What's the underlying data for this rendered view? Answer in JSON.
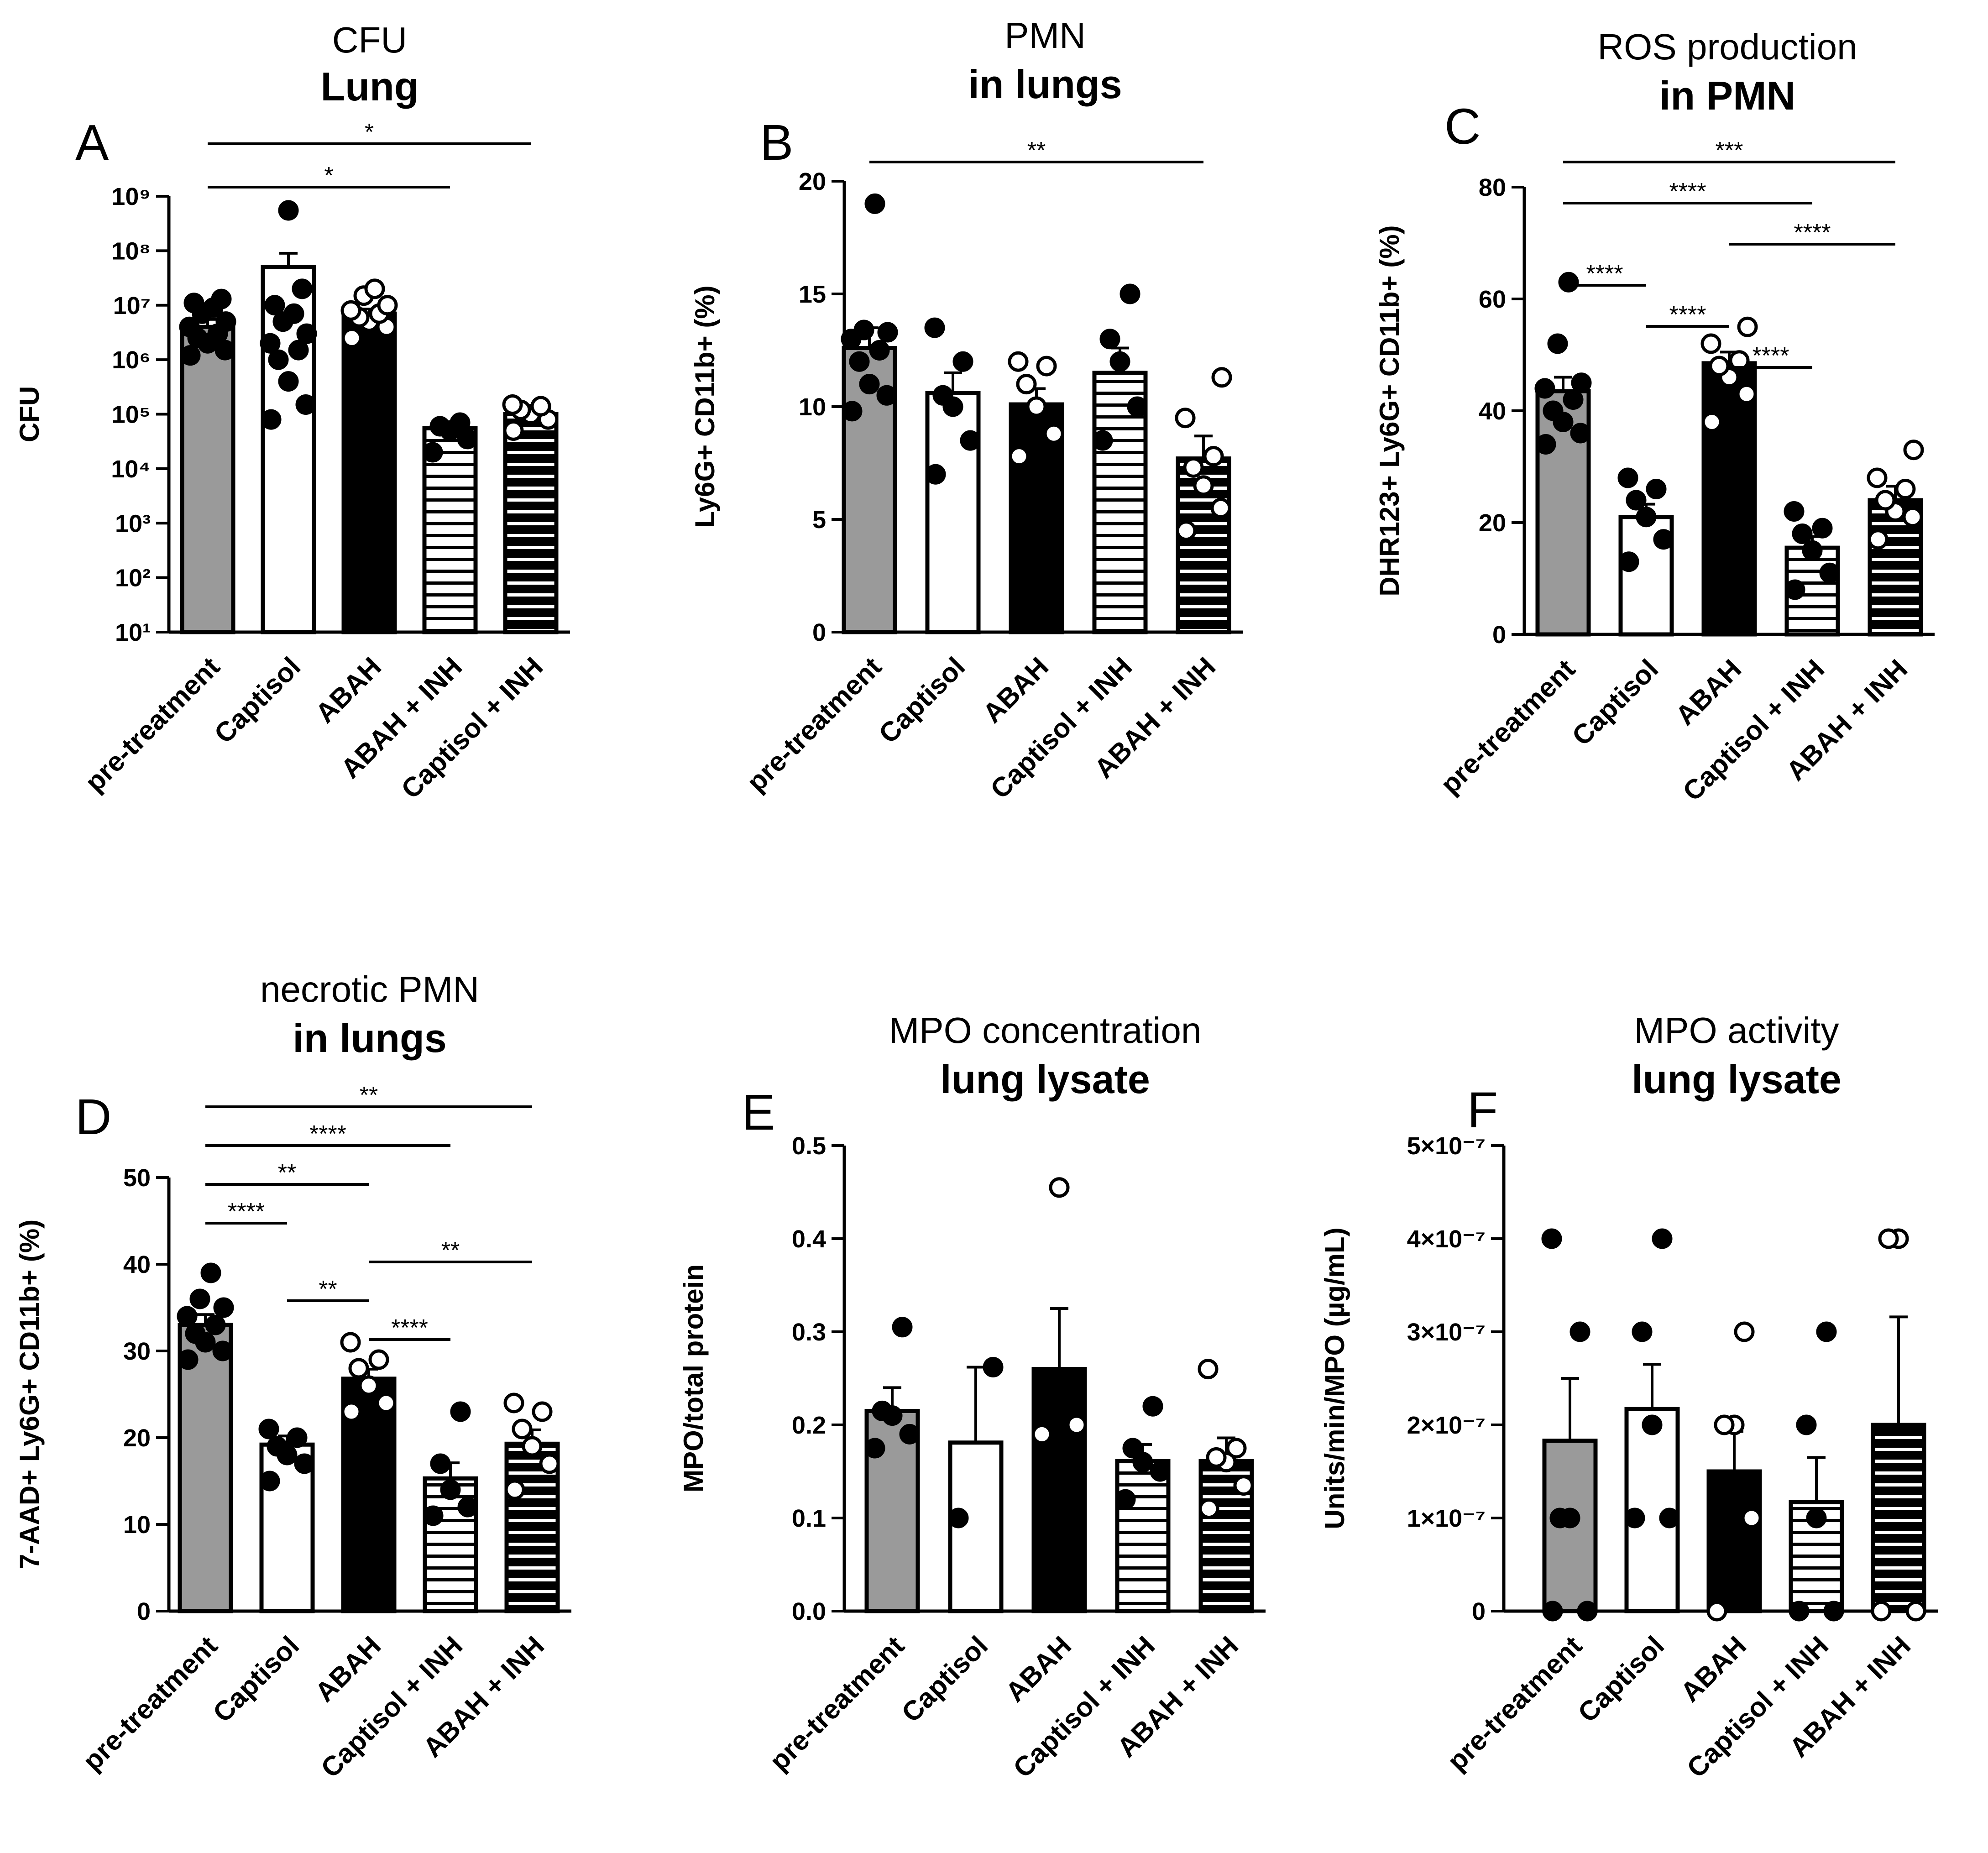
{
  "chart_data": [
    {
      "id": "A",
      "letter": "A",
      "type": "bar",
      "title": "CFU",
      "subtitle": "Lung",
      "ylabel": "CFU",
      "yscale": "log10",
      "ylim": [
        10,
        1000000000
      ],
      "ytick_labels": [
        "10¹",
        "10²",
        "10³",
        "10⁴",
        "10⁵",
        "10⁶",
        "10⁷",
        "10⁸",
        "10⁹"
      ],
      "categories": [
        "pre-treatment",
        "Captisol",
        "ABAH",
        "ABAH + INH",
        "Captisol + INH"
      ],
      "bar_styles": [
        "gray",
        "white",
        "black",
        "white-stripes",
        "black-stripes"
      ],
      "values": [
        4000000,
        50000000,
        7000000,
        55000,
        100000
      ],
      "errors": [
        1500000,
        40000000,
        1500000,
        12000,
        15000
      ],
      "points": [
        [
          1200000,
          1500000,
          2000000,
          2500000,
          3000000,
          4000000,
          5000000,
          7000000,
          9000000,
          11000000,
          13000000
        ],
        [
          80000,
          150000,
          400000,
          1000000,
          1500000,
          2000000,
          3000000,
          5000000,
          7000000,
          10000000,
          20000000,
          550000000
        ],
        [
          2500000,
          4000000,
          5000000,
          6000000,
          7000000,
          8000000,
          10000000,
          15000000,
          20000000
        ],
        [
          20000,
          35000,
          50000,
          60000,
          70000
        ],
        [
          50000,
          80000,
          100000,
          120000,
          140000,
          150000
        ]
      ],
      "point_styles": [
        "filled",
        "filled",
        "open",
        "filled",
        "open"
      ],
      "significance": [
        {
          "from": 0,
          "to": 4,
          "label": "*"
        },
        {
          "from": 0,
          "to": 3,
          "label": "*"
        }
      ]
    },
    {
      "id": "B",
      "letter": "B",
      "type": "bar",
      "title": "PMN",
      "subtitle": "in lungs",
      "ylabel": "Ly6G+ CD11b+ (%)",
      "yscale": "linear",
      "ylim": [
        0,
        20
      ],
      "yticks": [
        0,
        5,
        10,
        15,
        20
      ],
      "categories": [
        "pre-treatment",
        "Captisol",
        "ABAH",
        "Captisol + INH",
        "ABAH + INH"
      ],
      "bar_styles": [
        "gray",
        "white",
        "black",
        "white-stripes",
        "black-stripes"
      ],
      "values": [
        12.6,
        10.6,
        10.1,
        11.5,
        7.7
      ],
      "errors": [
        0.9,
        0.9,
        0.7,
        1.1,
        1.0
      ],
      "points": [
        [
          9.8,
          10.5,
          11.0,
          12.0,
          12.5,
          13.0,
          13.3,
          13.4,
          19.0
        ],
        [
          7.0,
          8.5,
          10.0,
          10.5,
          12.0,
          13.5
        ],
        [
          7.8,
          8.8,
          10.0,
          11.0,
          11.8,
          12.0
        ],
        [
          8.5,
          10.0,
          12.0,
          13.0,
          15.0
        ],
        [
          4.5,
          5.5,
          6.5,
          7.3,
          7.8,
          9.5,
          11.3
        ]
      ],
      "point_styles": [
        "filled",
        "filled",
        "open",
        "filled",
        "open"
      ],
      "significance": [
        {
          "from": 0,
          "to": 4,
          "label": "**"
        }
      ]
    },
    {
      "id": "C",
      "letter": "C",
      "type": "bar",
      "title": "ROS production",
      "subtitle": "in  PMN",
      "ylabel": "DHR123+ Ly6G+ CD11b+ (%)",
      "yscale": "linear",
      "ylim": [
        0,
        80
      ],
      "yticks": [
        0,
        20,
        40,
        60,
        80
      ],
      "categories": [
        "pre-treatment",
        "Captisol",
        "ABAH",
        "Captisol + INH",
        "ABAH + INH"
      ],
      "bar_styles": [
        "gray",
        "white",
        "black",
        "white-stripes",
        "black-stripes"
      ],
      "values": [
        43.5,
        21.0,
        48.5,
        15.5,
        24.0
      ],
      "errors": [
        2.5,
        2.3,
        2.0,
        2.0,
        2.5
      ],
      "points": [
        [
          34,
          36,
          38,
          40,
          42,
          44,
          45,
          52,
          63
        ],
        [
          13,
          17,
          21,
          24,
          26,
          28
        ],
        [
          38,
          43,
          46,
          48,
          49,
          52,
          55
        ],
        [
          8,
          11,
          15,
          18,
          19,
          22
        ],
        [
          17,
          21,
          22,
          24,
          26,
          28,
          33
        ]
      ],
      "point_styles": [
        "filled",
        "filled",
        "open",
        "filled",
        "open"
      ],
      "significance": [
        {
          "from": 0,
          "to": 4,
          "label": "***"
        },
        {
          "from": 0,
          "to": 3,
          "label": "****"
        },
        {
          "from": 2,
          "to": 4,
          "label": "****"
        },
        {
          "from": 0,
          "to": 1,
          "label": "****"
        },
        {
          "from": 1,
          "to": 2,
          "label": "****"
        },
        {
          "from": 2,
          "to": 3,
          "label": "****"
        }
      ]
    },
    {
      "id": "D",
      "letter": "D",
      "type": "bar",
      "title": "necrotic PMN",
      "subtitle": "in lungs",
      "ylabel": "7-AAD+ Ly6G+ CD11b+ (%)",
      "yscale": "linear",
      "ylim": [
        0,
        50
      ],
      "yticks": [
        0,
        10,
        20,
        30,
        40,
        50
      ],
      "categories": [
        "pre-treatment",
        "Captisol",
        "ABAH",
        "Captisol + INH",
        "ABAH + INH"
      ],
      "bar_styles": [
        "gray",
        "white",
        "black",
        "white-stripes",
        "black-stripes"
      ],
      "values": [
        33.0,
        19.2,
        26.8,
        15.3,
        19.3
      ],
      "errors": [
        1.2,
        1.0,
        1.1,
        1.8,
        1.6
      ],
      "points": [
        [
          29,
          30,
          31,
          32,
          33,
          34,
          35,
          36,
          39
        ],
        [
          15,
          17,
          18,
          19,
          20,
          21
        ],
        [
          23,
          24,
          26,
          28,
          29,
          31
        ],
        [
          11,
          12,
          14,
          17,
          23
        ],
        [
          14,
          17,
          19,
          21,
          23,
          24
        ]
      ],
      "point_styles": [
        "filled",
        "filled",
        "open",
        "filled",
        "open"
      ],
      "significance": [
        {
          "from": 0,
          "to": 4,
          "label": "**"
        },
        {
          "from": 0,
          "to": 3,
          "label": "****"
        },
        {
          "from": 0,
          "to": 2,
          "label": "**"
        },
        {
          "from": 0,
          "to": 1,
          "label": "****"
        },
        {
          "from": 2,
          "to": 4,
          "label": "**"
        },
        {
          "from": 1,
          "to": 2,
          "label": "**"
        },
        {
          "from": 2,
          "to": 3,
          "label": "****"
        }
      ]
    },
    {
      "id": "E",
      "letter": "E",
      "type": "bar",
      "title": "MPO concentration",
      "subtitle": "lung lysate",
      "ylabel": "MPO/total protein",
      "yscale": "linear",
      "ylim": [
        0,
        0.5
      ],
      "yticks": [
        0.0,
        0.1,
        0.2,
        0.3,
        0.4,
        0.5
      ],
      "ytick_labels": [
        "0.0",
        "0.1",
        "0.2",
        "0.3",
        "0.4",
        "0.5"
      ],
      "categories": [
        "pre-treatment",
        "Captisol",
        "ABAH",
        "Captisol + INH",
        "ABAH + INH"
      ],
      "bar_styles": [
        "gray",
        "white",
        "black",
        "white-stripes",
        "black-stripes"
      ],
      "values": [
        0.215,
        0.181,
        0.26,
        0.161,
        0.161
      ],
      "errors": [
        0.025,
        0.081,
        0.065,
        0.018,
        0.025
      ],
      "points": [
        [
          0.175,
          0.19,
          0.21,
          0.215,
          0.305
        ],
        [
          0.1,
          0.262
        ],
        [
          0.19,
          0.2,
          0.455
        ],
        [
          0.12,
          0.15,
          0.16,
          0.175,
          0.22
        ],
        [
          0.11,
          0.135,
          0.16,
          0.165,
          0.175,
          0.26
        ]
      ],
      "point_styles": [
        "filled",
        "filled",
        "open",
        "filled",
        "open"
      ],
      "significance": []
    },
    {
      "id": "F",
      "letter": "F",
      "type": "bar",
      "title": "MPO activity",
      "subtitle": "lung lysate",
      "ylabel": "Units/min/MPO (µg/mL)",
      "yscale": "linear",
      "ylim": [
        0,
        5e-07
      ],
      "yticks": [
        0,
        1e-07,
        2e-07,
        3e-07,
        4e-07,
        5e-07
      ],
      "ytick_labels": [
        "0",
        "1×10⁻⁷",
        "2×10⁻⁷",
        "3×10⁻⁷",
        "4×10⁻⁷",
        "5×10⁻⁷"
      ],
      "categories": [
        "pre-treatment",
        "Captisol",
        "ABAH",
        "Captisol + INH",
        "ABAH + INH"
      ],
      "bar_styles": [
        "gray",
        "white",
        "black",
        "white-stripes",
        "black-stripes"
      ],
      "values": [
        1.83e-07,
        2.17e-07,
        1.5e-07,
        1.17e-07,
        2e-07
      ],
      "errors": [
        6.7e-08,
        4.8e-08,
        4.3e-08,
        4.8e-08,
        1.16e-07
      ],
      "points": [
        [
          0,
          0,
          1e-07,
          1e-07,
          3e-07,
          4e-07
        ],
        [
          1e-07,
          1e-07,
          2e-07,
          3e-07,
          4e-07
        ],
        [
          0,
          1e-07,
          2e-07,
          2e-07,
          3e-07
        ],
        [
          0,
          0,
          1e-07,
          2e-07,
          3e-07
        ],
        [
          0,
          0,
          4e-07,
          4e-07
        ]
      ],
      "point_styles": [
        "filled",
        "filled",
        "open",
        "filled",
        "open"
      ],
      "significance": []
    }
  ]
}
